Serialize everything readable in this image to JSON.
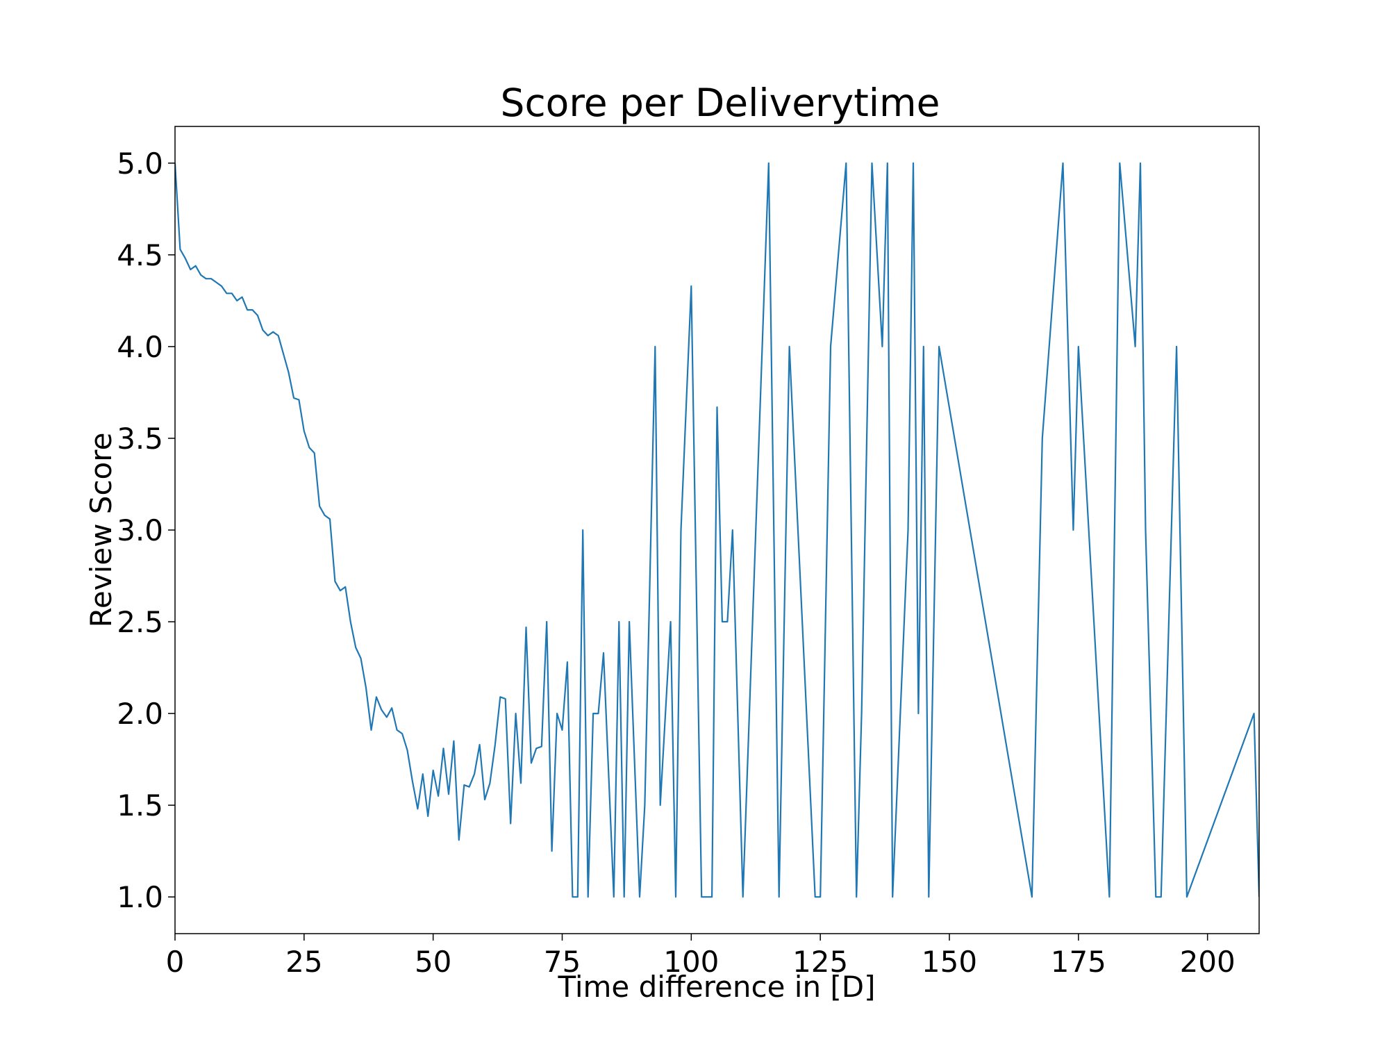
{
  "chart_data": {
    "type": "line",
    "title": "Score per Deliverytime",
    "xlabel": "Time difference in [D]",
    "ylabel": "Review Score",
    "xlim": [
      0,
      210
    ],
    "ylim": [
      0.8,
      5.2
    ],
    "xticks": [
      0,
      25,
      50,
      75,
      100,
      125,
      150,
      175,
      200
    ],
    "xtick_labels": [
      "0",
      "25",
      "50",
      "75",
      "100",
      "125",
      "150",
      "175",
      "200"
    ],
    "yticks": [
      1.0,
      1.5,
      2.0,
      2.5,
      3.0,
      3.5,
      4.0,
      4.5,
      5.0
    ],
    "ytick_labels": [
      "1.0",
      "1.5",
      "2.0",
      "2.5",
      "3.0",
      "3.5",
      "4.0",
      "4.5",
      "5.0"
    ],
    "grid": false,
    "legend": false,
    "line_color": "#1f77b4",
    "series": [
      {
        "x": [
          0,
          1,
          2,
          3,
          4,
          5,
          6,
          7,
          8,
          9,
          10,
          11,
          12,
          13,
          14,
          15,
          16,
          17,
          18,
          19,
          20,
          21,
          22,
          23,
          24,
          25,
          26,
          27,
          28,
          29,
          30,
          31,
          32,
          33,
          34,
          35,
          36,
          37,
          38,
          39,
          40,
          41,
          42,
          43,
          44,
          45,
          46,
          47,
          48,
          49,
          50,
          51,
          52,
          53,
          54,
          55,
          56,
          57,
          58,
          59,
          60,
          61,
          62,
          63,
          64,
          65,
          66,
          67,
          68,
          69,
          70,
          71,
          72,
          73,
          74,
          75,
          76,
          77,
          78,
          79,
          80,
          81,
          82,
          83,
          85,
          86,
          87,
          88,
          90,
          91,
          93,
          94,
          96,
          97,
          98,
          100,
          102,
          103,
          104,
          105,
          106,
          107,
          108,
          110,
          115,
          117,
          119,
          124,
          125,
          127,
          130,
          132,
          133,
          135,
          137,
          138,
          139,
          142,
          143,
          144,
          145,
          146,
          148,
          166,
          168,
          172,
          174,
          175,
          181,
          183,
          186,
          187,
          188,
          190,
          191,
          194,
          196,
          209,
          210
        ],
        "y": [
          5.0,
          4.53,
          4.48,
          4.42,
          4.44,
          4.39,
          4.37,
          4.37,
          4.35,
          4.33,
          4.29,
          4.29,
          4.25,
          4.27,
          4.2,
          4.2,
          4.17,
          4.09,
          4.06,
          4.08,
          4.06,
          3.96,
          3.86,
          3.72,
          3.71,
          3.54,
          3.45,
          3.42,
          3.13,
          3.08,
          3.06,
          2.72,
          2.67,
          2.69,
          2.5,
          2.36,
          2.3,
          2.14,
          1.91,
          2.09,
          2.02,
          1.98,
          2.03,
          1.91,
          1.89,
          1.8,
          1.63,
          1.48,
          1.67,
          1.44,
          1.69,
          1.55,
          1.81,
          1.56,
          1.85,
          1.31,
          1.61,
          1.6,
          1.67,
          1.83,
          1.53,
          1.62,
          1.83,
          2.09,
          2.08,
          1.4,
          2.0,
          1.62,
          2.47,
          1.73,
          1.81,
          1.82,
          2.5,
          1.25,
          2.0,
          1.91,
          2.28,
          1.0,
          1.0,
          3.0,
          1.0,
          2.0,
          2.0,
          2.33,
          1.0,
          2.5,
          1.0,
          2.5,
          1.0,
          1.5,
          4.0,
          1.5,
          2.5,
          1.0,
          3.0,
          4.33,
          1.0,
          1.0,
          1.0,
          3.67,
          2.5,
          2.5,
          3.0,
          1.0,
          5.0,
          1.0,
          4.0,
          1.0,
          1.0,
          4.0,
          5.0,
          1.0,
          2.0,
          5.0,
          4.0,
          5.0,
          1.0,
          3.0,
          5.0,
          2.0,
          4.0,
          1.0,
          4.0,
          1.0,
          3.5,
          5.0,
          3.0,
          4.0,
          1.0,
          5.0,
          4.0,
          5.0,
          3.0,
          1.0,
          1.0,
          4.0,
          1.0,
          2.0,
          1.0
        ]
      }
    ]
  }
}
